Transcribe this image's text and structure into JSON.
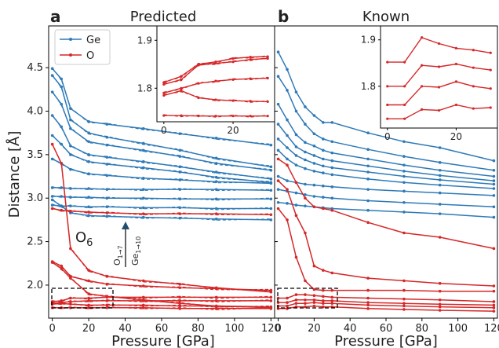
{
  "figure": {
    "panel_a": {
      "letter": "a",
      "title": "Predicted"
    },
    "panel_b": {
      "letter": "b",
      "title": "Known"
    },
    "ylabel": "Distance [Å]",
    "xlabel": "Pressure [GPa]",
    "legend": [
      {
        "label": "Ge",
        "color": "#2e7ab8"
      },
      {
        "label": "O",
        "color": "#d62728"
      }
    ],
    "annotations": {
      "o6": "O",
      "o6_sub": "6",
      "arrow_left": "O",
      "arrow_left_sub": "1→7",
      "arrow_right": "Ge",
      "arrow_right_sub": "1→10"
    }
  },
  "chart_data": [
    {
      "type": "line",
      "panel": "a",
      "title": "Predicted",
      "xlabel": "Pressure [GPa]",
      "ylabel": "Distance [Å]",
      "xlim": [
        -2,
        122
      ],
      "ylim": [
        1.62,
        4.98
      ],
      "xticks": [
        0,
        20,
        40,
        60,
        80,
        100,
        120
      ],
      "yticks": [
        2.0,
        2.5,
        3.0,
        3.5,
        4.0,
        4.5
      ],
      "legend_position": "top-left",
      "x": [
        0,
        5,
        10,
        20,
        30,
        50,
        70,
        90,
        120
      ],
      "series": [
        {
          "name": "Ge",
          "color": "#2e7ab8",
          "values": [
            4.49,
            4.37,
            4.03,
            3.88,
            3.85,
            3.8,
            3.74,
            3.69,
            3.61
          ]
        },
        {
          "name": "Ge",
          "color": "#2e7ab8",
          "values": [
            4.41,
            4.28,
            3.9,
            3.75,
            3.7,
            3.63,
            3.55,
            3.46,
            3.36
          ]
        },
        {
          "name": "Ge",
          "color": "#2e7ab8",
          "values": [
            4.22,
            4.08,
            3.8,
            3.65,
            3.61,
            3.55,
            3.48,
            3.4,
            3.32
          ]
        },
        {
          "name": "Ge",
          "color": "#2e7ab8",
          "values": [
            3.95,
            3.82,
            3.6,
            3.5,
            3.47,
            3.42,
            3.36,
            3.3,
            3.22
          ]
        },
        {
          "name": "Ge",
          "color": "#2e7ab8",
          "values": [
            3.72,
            3.62,
            3.5,
            3.42,
            3.39,
            3.35,
            3.3,
            3.24,
            3.18
          ]
        },
        {
          "name": "Ge",
          "color": "#2e7ab8",
          "values": [
            3.45,
            3.4,
            3.33,
            3.28,
            3.26,
            3.23,
            3.21,
            3.19,
            3.17
          ]
        },
        {
          "name": "Ge",
          "color": "#2e7ab8",
          "values": [
            3.12,
            3.12,
            3.11,
            3.11,
            3.1,
            3.1,
            3.1,
            3.1,
            3.09
          ]
        },
        {
          "name": "Ge",
          "color": "#2e7ab8",
          "values": [
            3.02,
            3.02,
            3.01,
            3.01,
            3.0,
            3.0,
            2.99,
            2.99,
            2.99
          ]
        },
        {
          "name": "Ge",
          "color": "#2e7ab8",
          "values": [
            2.92,
            2.91,
            2.91,
            2.9,
            2.9,
            2.89,
            2.89,
            2.88,
            2.88
          ]
        },
        {
          "name": "Ge",
          "color": "#2e7ab8",
          "values": [
            2.98,
            2.91,
            2.83,
            2.8,
            2.79,
            2.78,
            2.77,
            2.76,
            2.75
          ]
        },
        {
          "name": "O",
          "color": "#d62728",
          "values": [
            3.62,
            3.4,
            2.42,
            2.17,
            2.1,
            2.05,
            2.01,
            1.97,
            1.92
          ]
        },
        {
          "name": "O",
          "color": "#d62728",
          "values": [
            2.88,
            2.86,
            2.85,
            2.84,
            2.83,
            2.82,
            2.82,
            2.82,
            2.81
          ]
        },
        {
          "name": "O",
          "color": "#d62728",
          "values": [
            2.27,
            2.22,
            2.1,
            2.05,
            2.01,
            1.99,
            1.97,
            1.96,
            1.94
          ]
        },
        {
          "name": "O",
          "color": "#d62728",
          "values": [
            2.26,
            2.19,
            2.08,
            1.9,
            1.87,
            1.83,
            1.79,
            1.76,
            1.74
          ]
        },
        {
          "name": "O",
          "color": "#d62728",
          "values": [
            1.81,
            1.82,
            1.85,
            1.85,
            1.86,
            1.86,
            1.86,
            1.86,
            1.86
          ]
        },
        {
          "name": "O",
          "color": "#d62728",
          "values": [
            1.79,
            1.8,
            1.81,
            1.82,
            1.82,
            1.82,
            1.82,
            1.82,
            1.82
          ]
        },
        {
          "name": "O",
          "color": "#d62728",
          "values": [
            1.78,
            1.79,
            1.78,
            1.77,
            1.77,
            1.77,
            1.76,
            1.76,
            1.75
          ]
        },
        {
          "name": "O",
          "color": "#d62728",
          "values": [
            1.74,
            1.74,
            1.74,
            1.74,
            1.74,
            1.74,
            1.73,
            1.73,
            1.73
          ]
        }
      ]
    },
    {
      "type": "line",
      "panel": "b",
      "title": "Known",
      "xlabel": "Pressure [GPa]",
      "xlim": [
        -2,
        122
      ],
      "ylim": [
        1.62,
        4.98
      ],
      "xticks": [
        0,
        20,
        40,
        60,
        80,
        100,
        120
      ],
      "x": [
        0,
        5,
        10,
        15,
        20,
        25,
        30,
        50,
        70,
        90,
        120
      ],
      "series": [
        {
          "name": "Ge",
          "color": "#2e7ab8",
          "values": [
            4.68,
            4.48,
            4.22,
            4.05,
            3.95,
            3.87,
            3.87,
            3.75,
            3.65,
            3.58,
            3.43
          ]
        },
        {
          "name": "Ge",
          "color": "#2e7ab8",
          "values": [
            4.4,
            4.24,
            4.0,
            3.85,
            3.74,
            3.68,
            3.65,
            3.56,
            3.48,
            3.41,
            3.32
          ]
        },
        {
          "name": "Ge",
          "color": "#2e7ab8",
          "values": [
            4.08,
            3.9,
            3.73,
            3.64,
            3.6,
            3.55,
            3.52,
            3.45,
            3.38,
            3.32,
            3.25
          ]
        },
        {
          "name": "Ge",
          "color": "#2e7ab8",
          "values": [
            3.85,
            3.72,
            3.59,
            3.53,
            3.49,
            3.45,
            3.43,
            3.37,
            3.31,
            3.26,
            3.2
          ]
        },
        {
          "name": "Ge",
          "color": "#2e7ab8",
          "values": [
            3.68,
            3.58,
            3.49,
            3.44,
            3.4,
            3.37,
            3.35,
            3.3,
            3.25,
            3.21,
            3.16
          ]
        },
        {
          "name": "Ge",
          "color": "#2e7ab8",
          "values": [
            3.55,
            3.45,
            3.38,
            3.34,
            3.31,
            3.29,
            3.27,
            3.22,
            3.18,
            3.15,
            3.11
          ]
        },
        {
          "name": "Ge",
          "color": "#2e7ab8",
          "values": [
            3.25,
            3.2,
            3.18,
            3.16,
            3.15,
            3.14,
            3.13,
            3.1,
            3.08,
            3.06,
            3.03
          ]
        },
        {
          "name": "Ge",
          "color": "#2e7ab8",
          "values": [
            3.1,
            3.08,
            3.06,
            3.04,
            3.02,
            3.01,
            3.0,
            2.97,
            2.95,
            2.93,
            2.9
          ]
        },
        {
          "name": "Ge",
          "color": "#2e7ab8",
          "values": [
            2.95,
            2.94,
            2.92,
            2.91,
            2.9,
            2.89,
            2.88,
            2.86,
            2.84,
            2.82,
            2.78
          ]
        },
        {
          "name": "O",
          "color": "#d62728",
          "values": [
            3.45,
            3.38,
            3.18,
            3.0,
            2.9,
            2.88,
            2.86,
            2.72,
            2.6,
            2.55,
            2.42
          ]
        },
        {
          "name": "O",
          "color": "#d62728",
          "values": [
            3.2,
            3.1,
            2.8,
            2.6,
            2.22,
            2.17,
            2.14,
            2.08,
            2.05,
            2.02,
            1.99
          ]
        },
        {
          "name": "O",
          "color": "#d62728",
          "values": [
            2.88,
            2.75,
            2.32,
            2.05,
            1.95,
            1.94,
            1.94,
            1.94,
            1.94,
            1.93,
            1.93
          ]
        },
        {
          "name": "O",
          "color": "#d62728",
          "values": [
            1.85,
            1.85,
            1.89,
            1.89,
            1.88,
            1.87,
            1.86,
            1.85,
            1.84,
            1.83,
            1.81
          ]
        },
        {
          "name": "O",
          "color": "#d62728",
          "values": [
            1.8,
            1.8,
            1.83,
            1.83,
            1.83,
            1.82,
            1.82,
            1.8,
            1.79,
            1.78,
            1.77
          ]
        },
        {
          "name": "O",
          "color": "#d62728",
          "values": [
            1.76,
            1.76,
            1.79,
            1.79,
            1.8,
            1.79,
            1.79,
            1.77,
            1.76,
            1.75,
            1.74
          ]
        },
        {
          "name": "O",
          "color": "#d62728",
          "values": [
            1.73,
            1.73,
            1.75,
            1.75,
            1.76,
            1.75,
            1.75,
            1.73,
            1.72,
            1.71,
            1.7
          ]
        }
      ]
    },
    {
      "type": "line",
      "panel": "a-inset",
      "xlim": [
        -2,
        32
      ],
      "ylim": [
        1.73,
        1.93
      ],
      "xticks": [
        0,
        20
      ],
      "yticks": [
        1.8,
        1.9
      ],
      "x": [
        0,
        5,
        10,
        15,
        20,
        25,
        30
      ],
      "series": [
        {
          "color": "#d62728",
          "values": [
            1.812,
            1.825,
            1.85,
            1.855,
            1.862,
            1.865,
            1.866
          ]
        },
        {
          "color": "#d62728",
          "values": [
            1.808,
            1.818,
            1.848,
            1.852,
            1.855,
            1.86,
            1.862
          ]
        },
        {
          "color": "#d62728",
          "values": [
            1.79,
            1.8,
            1.81,
            1.815,
            1.818,
            1.82,
            1.821
          ]
        },
        {
          "color": "#d62728",
          "values": [
            1.785,
            1.795,
            1.78,
            1.776,
            1.774,
            1.773,
            1.772
          ]
        },
        {
          "color": "#d62728",
          "values": [
            1.743,
            1.743,
            1.742,
            1.742,
            1.742,
            1.742,
            1.742
          ]
        }
      ]
    },
    {
      "type": "line",
      "panel": "b-inset",
      "xlim": [
        -2,
        32
      ],
      "ylim": [
        1.71,
        1.93
      ],
      "xticks": [
        0,
        20
      ],
      "yticks": [
        1.8,
        1.9
      ],
      "x": [
        0,
        5,
        10,
        15,
        20,
        25,
        30
      ],
      "series": [
        {
          "color": "#d62728",
          "values": [
            1.852,
            1.852,
            1.905,
            1.892,
            1.882,
            1.878,
            1.872
          ]
        },
        {
          "color": "#d62728",
          "values": [
            1.8,
            1.8,
            1.845,
            1.842,
            1.848,
            1.84,
            1.835
          ]
        },
        {
          "color": "#d62728",
          "values": [
            1.76,
            1.76,
            1.8,
            1.798,
            1.81,
            1.8,
            1.795
          ]
        },
        {
          "color": "#d62728",
          "values": [
            1.73,
            1.73,
            1.75,
            1.748,
            1.76,
            1.752,
            1.754
          ]
        }
      ]
    }
  ]
}
